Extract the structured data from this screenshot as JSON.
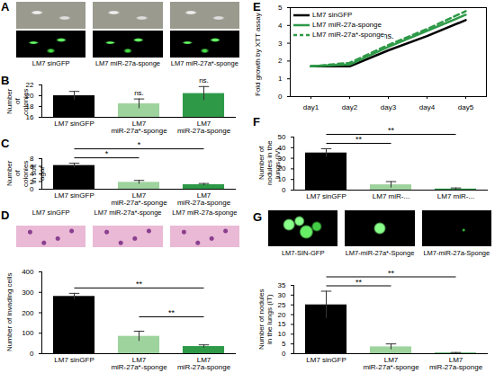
{
  "chart_data": [
    {
      "panel": "B",
      "type": "bar",
      "categories": [
        "LM7 sinGFP",
        "LM7 miR-27a*-sponge",
        "LM7 miR-27a-sponge"
      ],
      "values": [
        20,
        18.5,
        20.4
      ],
      "errors": [
        0.8,
        0.9,
        1.3
      ],
      "colors": [
        "#000000",
        "#9ed39e",
        "#2e9a48"
      ],
      "ylabel": "Number of colonies",
      "ylim": [
        16,
        22
      ],
      "yticks": [
        16,
        18,
        20,
        22
      ],
      "annotations": [
        {
          "at": 1,
          "label": "ns."
        },
        {
          "at": 2,
          "label": "ns."
        }
      ]
    },
    {
      "panel": "C",
      "type": "bar",
      "categories": [
        "LM7 sinGFP",
        "LM7 miR-27a*-sponge",
        "LM7 miR-27a-sponge"
      ],
      "values": [
        6.2,
        1.8,
        1.2
      ],
      "errors": [
        0.6,
        0.5,
        0.3
      ],
      "colors": [
        "#000000",
        "#9ed39e",
        "#2e9a48"
      ],
      "ylabel": "Number of colonies in soft agar",
      "ylim": [
        0,
        8
      ],
      "yticks": [
        0,
        2,
        4,
        6,
        8
      ],
      "annotations": [
        {
          "from": 0,
          "to": 1,
          "label": "*"
        },
        {
          "from": 0,
          "to": 2,
          "label": "*"
        }
      ]
    },
    {
      "type": "bar",
      "categories": [
        "LM7 sinGFP",
        "LM7 miR-27a*-sponge",
        "LM7 miR-27a-sponge"
      ],
      "values": [
        280,
        85,
        35
      ],
      "errors": [
        15,
        25,
        8
      ],
      "colors": [
        "#000000",
        "#9ed39e",
        "#2e9a48"
      ],
      "ylabel": "Number of invading cells",
      "ylim": [
        0,
        400
      ],
      "yticks": [
        0,
        100,
        200,
        300,
        400
      ],
      "annotations": [
        {
          "from": 0,
          "to": 2,
          "label": "**"
        },
        {
          "from": 1,
          "to": 2,
          "label": "**"
        }
      ]
    },
    {
      "panel": "E",
      "type": "line",
      "categories": [
        "day1",
        "day2",
        "day3",
        "day4",
        "day5"
      ],
      "series": [
        {
          "name": "LM7 sinGFP",
          "color": "#000000",
          "line_style": "solid",
          "values": [
            1.7,
            1.7,
            2.6,
            3.4,
            4.3
          ]
        },
        {
          "name": "LM7 miR-27a-sponge",
          "color": "#2e9a48",
          "line_style": "solid",
          "values": [
            1.7,
            1.8,
            2.8,
            3.7,
            4.6
          ]
        },
        {
          "name": "LM7 miR-27a*-sponge",
          "color": "#2e9a48",
          "line_style": "dashed",
          "values": [
            1.7,
            1.9,
            2.9,
            3.8,
            4.8
          ]
        }
      ],
      "ylabel": "Fold growth by XTT assay",
      "ylim": [
        0,
        5
      ],
      "yticks": [
        0,
        1,
        2,
        3,
        4,
        5
      ],
      "legend": "top-left",
      "annotations": [
        {
          "x": "day3",
          "label": "ns."
        }
      ]
    },
    {
      "panel": "F",
      "type": "bar",
      "categories": [
        "LM7 sinGFP",
        "LM7 miR-...",
        "LM7 miR-..."
      ],
      "values": [
        35,
        5,
        1
      ],
      "errors": [
        4,
        3,
        1
      ],
      "colors": [
        "#000000",
        "#9ed39e",
        "#2e9a48"
      ],
      "ylabel": "Number of nodules in the lungs (IV)",
      "ylim": [
        0,
        50
      ],
      "yticks": [
        0,
        10,
        20,
        30,
        40,
        50
      ],
      "annotations": [
        {
          "from": 0,
          "to": 1,
          "label": "**"
        },
        {
          "from": 0,
          "to": 2,
          "label": "**"
        }
      ]
    },
    {
      "type": "bar",
      "categories": [
        "LM7 sinGFP",
        "LM7 miR-27a*-sponge",
        "LM7 miR-27a-sponge"
      ],
      "values": [
        25,
        3.5,
        0.3
      ],
      "errors": [
        7,
        1.5,
        0.3
      ],
      "colors": [
        "#000000",
        "#9ed39e",
        "#2e9a48"
      ],
      "ylabel": "Number of nodules in the lungs (IT)",
      "ylim": [
        0,
        35
      ],
      "yticks": [
        0,
        5,
        10,
        15,
        20,
        25,
        30,
        35
      ],
      "annotations": [
        {
          "from": 0,
          "to": 1,
          "label": "**"
        },
        {
          "from": 0,
          "to": 2,
          "label": "**"
        }
      ]
    }
  ],
  "images": [
    {
      "panel": "A",
      "labels": [
        "LM7 sinGFP",
        "LM7 miR-27a-sponge",
        "LM7 miR-27a*-sponge"
      ]
    },
    {
      "panel": "D",
      "labels": [
        "LM7 sinGFP",
        "LM7 miR-27a*-sponge",
        "LM7 miR-27a-sponge"
      ]
    },
    {
      "panel": "G",
      "labels": [
        "LM7-SIN-GFP",
        "LM7-miR-27a*-Sponge",
        "LM7-miR-27a-Sponge"
      ]
    }
  ]
}
